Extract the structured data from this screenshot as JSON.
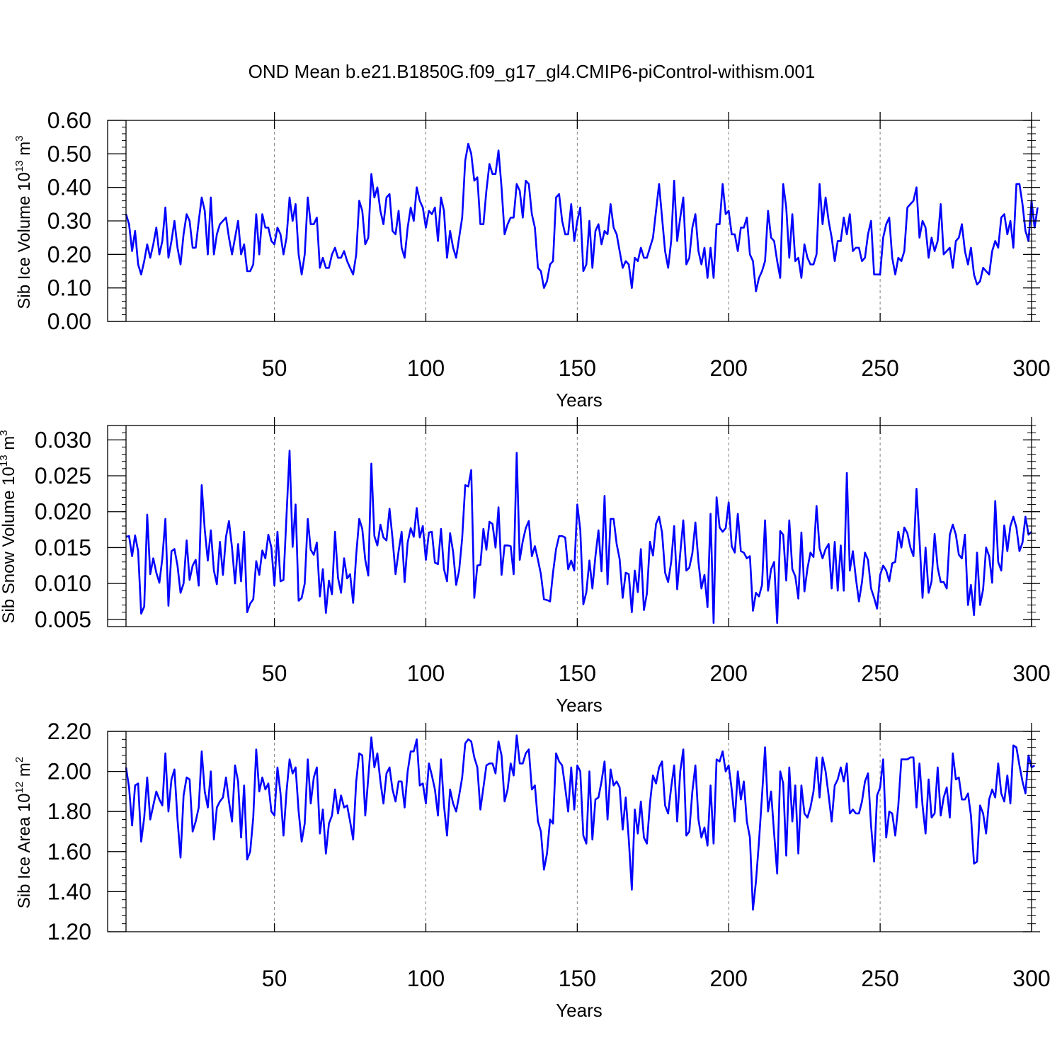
{
  "title": "OND Mean b.e21.B1850G.f09_g17_gl4.CMIP6-piControl-withism.001",
  "line_color": "#0000ff",
  "chart_data": [
    {
      "type": "line",
      "ylabel": "Sib Ice Volume 10",
      "ylabel_sup": "13",
      "ylabel_unit": "m",
      "ylabel_unit_sup": "3",
      "xlabel": "Years",
      "xlim": [
        1,
        300
      ],
      "ylim": [
        0,
        0.6
      ],
      "xticks": [
        50,
        100,
        150,
        200,
        250,
        300
      ],
      "xtick_labels": [
        "50",
        "100",
        "150",
        "200",
        "250",
        "300"
      ],
      "yticks": [
        0,
        0.1,
        0.2,
        0.3,
        0.4,
        0.5,
        0.6
      ],
      "ytick_labels": [
        "0.00",
        "0.10",
        "0.20",
        "0.30",
        "0.40",
        "0.50",
        "0.60"
      ],
      "x_start": 1,
      "values": [
        0.32,
        0.29,
        0.21,
        0.27,
        0.17,
        0.14,
        0.18,
        0.23,
        0.19,
        0.23,
        0.28,
        0.2,
        0.24,
        0.34,
        0.19,
        0.24,
        0.3,
        0.22,
        0.17,
        0.26,
        0.32,
        0.3,
        0.22,
        0.22,
        0.3,
        0.37,
        0.33,
        0.2,
        0.37,
        0.2,
        0.26,
        0.29,
        0.3,
        0.31,
        0.25,
        0.2,
        0.25,
        0.3,
        0.2,
        0.23,
        0.15,
        0.15,
        0.17,
        0.32,
        0.2,
        0.32,
        0.28,
        0.28,
        0.24,
        0.23,
        0.28,
        0.26,
        0.2,
        0.25,
        0.37,
        0.3,
        0.35,
        0.2,
        0.14,
        0.2,
        0.37,
        0.29,
        0.29,
        0.31,
        0.16,
        0.19,
        0.16,
        0.16,
        0.2,
        0.22,
        0.19,
        0.19,
        0.21,
        0.18,
        0.16,
        0.14,
        0.2,
        0.36,
        0.33,
        0.23,
        0.25,
        0.44,
        0.37,
        0.4,
        0.33,
        0.29,
        0.37,
        0.38,
        0.27,
        0.26,
        0.33,
        0.22,
        0.19,
        0.28,
        0.34,
        0.3,
        0.4,
        0.36,
        0.34,
        0.28,
        0.33,
        0.32,
        0.34,
        0.24,
        0.37,
        0.33,
        0.19,
        0.27,
        0.22,
        0.19,
        0.25,
        0.31,
        0.48,
        0.53,
        0.5,
        0.42,
        0.43,
        0.29,
        0.29,
        0.39,
        0.47,
        0.44,
        0.44,
        0.51,
        0.4,
        0.26,
        0.29,
        0.31,
        0.31,
        0.41,
        0.39,
        0.31,
        0.42,
        0.41,
        0.32,
        0.28,
        0.16,
        0.15,
        0.1,
        0.12,
        0.17,
        0.18,
        0.37,
        0.38,
        0.3,
        0.26,
        0.26,
        0.35,
        0.24,
        0.3,
        0.34,
        0.15,
        0.17,
        0.3,
        0.16,
        0.27,
        0.29,
        0.23,
        0.27,
        0.26,
        0.35,
        0.28,
        0.26,
        0.21,
        0.16,
        0.18,
        0.17,
        0.1,
        0.19,
        0.18,
        0.22,
        0.19,
        0.19,
        0.22,
        0.25,
        0.33,
        0.41,
        0.31,
        0.21,
        0.16,
        0.24,
        0.42,
        0.24,
        0.31,
        0.37,
        0.17,
        0.19,
        0.28,
        0.32,
        0.21,
        0.17,
        0.22,
        0.13,
        0.22,
        0.13,
        0.29,
        0.29,
        0.41,
        0.32,
        0.33,
        0.26,
        0.26,
        0.21,
        0.28,
        0.28,
        0.31,
        0.2,
        0.18,
        0.09,
        0.13,
        0.15,
        0.18,
        0.33,
        0.25,
        0.24,
        0.18,
        0.13,
        0.41,
        0.34,
        0.19,
        0.32,
        0.18,
        0.19,
        0.13,
        0.23,
        0.19,
        0.17,
        0.17,
        0.2,
        0.41,
        0.29,
        0.37,
        0.3,
        0.25,
        0.18,
        0.24,
        0.24,
        0.31,
        0.26,
        0.32,
        0.21,
        0.22,
        0.22,
        0.18,
        0.19,
        0.26,
        0.3,
        0.14,
        0.14,
        0.14,
        0.25,
        0.29,
        0.31,
        0.19,
        0.14,
        0.19,
        0.18,
        0.21,
        0.34,
        0.35,
        0.36,
        0.4,
        0.25,
        0.3,
        0.28,
        0.19,
        0.25,
        0.21,
        0.24,
        0.35,
        0.2,
        0.21,
        0.22,
        0.16,
        0.24,
        0.25,
        0.29,
        0.21,
        0.17,
        0.22,
        0.14,
        0.11,
        0.12,
        0.16,
        0.15,
        0.14,
        0.21,
        0.24,
        0.22,
        0.31,
        0.32,
        0.26,
        0.3,
        0.22,
        0.41,
        0.41,
        0.35,
        0.27,
        0.24,
        0.36,
        0.28,
        0.34
      ]
    },
    {
      "type": "line",
      "ylabel": "Sib Snow Volume 10",
      "ylabel_sup": "13",
      "ylabel_unit": "m",
      "ylabel_unit_sup": "3",
      "xlabel": "Years",
      "xlim": [
        1,
        300
      ],
      "ylim": [
        0.004,
        0.032
      ],
      "xticks": [
        50,
        100,
        150,
        200,
        250,
        300
      ],
      "xtick_labels": [
        "50",
        "100",
        "150",
        "200",
        "250",
        "300"
      ],
      "yticks": [
        0.005,
        0.01,
        0.015,
        0.02,
        0.025,
        0.03
      ],
      "ytick_labels": [
        "0.005",
        "0.010",
        "0.015",
        "0.020",
        "0.025",
        "0.030"
      ],
      "x_start": 1,
      "values": [
        0.0165,
        0.0166,
        0.0138,
        0.0167,
        0.0145,
        0.0058,
        0.0068,
        0.0196,
        0.0113,
        0.0135,
        0.0115,
        0.0101,
        0.0135,
        0.019,
        0.0069,
        0.0145,
        0.0148,
        0.0125,
        0.0087,
        0.01,
        0.016,
        0.0105,
        0.0125,
        0.0133,
        0.0097,
        0.0237,
        0.0175,
        0.0132,
        0.0174,
        0.0118,
        0.0099,
        0.0158,
        0.0112,
        0.0165,
        0.0187,
        0.015,
        0.01,
        0.0155,
        0.0103,
        0.0172,
        0.006,
        0.0072,
        0.0078,
        0.0131,
        0.0112,
        0.0146,
        0.0135,
        0.0168,
        0.015,
        0.0097,
        0.0172,
        0.0103,
        0.0105,
        0.0195,
        0.0285,
        0.0151,
        0.021,
        0.0076,
        0.008,
        0.01,
        0.019,
        0.0147,
        0.014,
        0.0157,
        0.0082,
        0.012,
        0.0059,
        0.0104,
        0.0085,
        0.0172,
        0.0108,
        0.0087,
        0.0135,
        0.0107,
        0.0113,
        0.0073,
        0.014,
        0.019,
        0.0176,
        0.0133,
        0.0111,
        0.0267,
        0.0166,
        0.0153,
        0.0182,
        0.0164,
        0.016,
        0.0204,
        0.0163,
        0.0113,
        0.0145,
        0.0172,
        0.0102,
        0.0157,
        0.0177,
        0.0165,
        0.0205,
        0.0164,
        0.018,
        0.0133,
        0.0171,
        0.0172,
        0.0129,
        0.0127,
        0.0176,
        0.012,
        0.0103,
        0.017,
        0.0144,
        0.0098,
        0.0118,
        0.0163,
        0.0237,
        0.0235,
        0.0258,
        0.008,
        0.0125,
        0.0126,
        0.0176,
        0.0147,
        0.0186,
        0.0183,
        0.015,
        0.0206,
        0.0112,
        0.0153,
        0.0153,
        0.0152,
        0.0113,
        0.0282,
        0.0133,
        0.0159,
        0.0177,
        0.0187,
        0.0138,
        0.0152,
        0.0133,
        0.0113,
        0.0078,
        0.0077,
        0.0075,
        0.0115,
        0.0148,
        0.0166,
        0.0166,
        0.0164,
        0.012,
        0.0132,
        0.0118,
        0.021,
        0.0175,
        0.0071,
        0.0088,
        0.0132,
        0.0093,
        0.0138,
        0.0174,
        0.0117,
        0.0222,
        0.0099,
        0.019,
        0.019,
        0.0155,
        0.0134,
        0.008,
        0.0115,
        0.0113,
        0.006,
        0.0118,
        0.0088,
        0.0148,
        0.0063,
        0.0086,
        0.0158,
        0.0139,
        0.0183,
        0.0193,
        0.0171,
        0.0115,
        0.0102,
        0.013,
        0.018,
        0.0092,
        0.0142,
        0.0188,
        0.0118,
        0.0122,
        0.0142,
        0.0185,
        0.013,
        0.0093,
        0.0112,
        0.0067,
        0.0197,
        0.0045,
        0.022,
        0.0178,
        0.0172,
        0.0177,
        0.0213,
        0.0152,
        0.0143,
        0.0197,
        0.0145,
        0.0143,
        0.0135,
        0.0138,
        0.0062,
        0.0087,
        0.0082,
        0.0098,
        0.0188,
        0.009,
        0.012,
        0.013,
        0.0045,
        0.0173,
        0.0168,
        0.0104,
        0.0188,
        0.012,
        0.011,
        0.0079,
        0.0171,
        0.0089,
        0.0121,
        0.0143,
        0.0137,
        0.0208,
        0.0149,
        0.0135,
        0.0148,
        0.0155,
        0.0093,
        0.0158,
        0.009,
        0.0153,
        0.009,
        0.0254,
        0.0118,
        0.0145,
        0.0107,
        0.0075,
        0.0102,
        0.0143,
        0.0133,
        0.0093,
        0.008,
        0.0065,
        0.0112,
        0.0125,
        0.0118,
        0.0103,
        0.0128,
        0.013,
        0.0172,
        0.015,
        0.0178,
        0.017,
        0.015,
        0.0138,
        0.0232,
        0.0162,
        0.008,
        0.015,
        0.0087,
        0.0103,
        0.0169,
        0.0122,
        0.0102,
        0.0102,
        0.0093,
        0.0168,
        0.0182,
        0.0168,
        0.014,
        0.0135,
        0.0168,
        0.007,
        0.0098,
        0.0056,
        0.0143,
        0.007,
        0.0092,
        0.015,
        0.0138,
        0.0101,
        0.0215,
        0.013,
        0.0118,
        0.0181,
        0.0145,
        0.018,
        0.0193,
        0.0178,
        0.0145,
        0.0157,
        0.0193,
        0.0168,
        0.0172
      ]
    },
    {
      "type": "line",
      "ylabel": "Sib Ice Area 10",
      "ylabel_sup": "12",
      "ylabel_unit": "m",
      "ylabel_unit_sup": "2",
      "xlabel": "Years",
      "xlim": [
        1,
        300
      ],
      "ylim": [
        1.2,
        2.2
      ],
      "xticks": [
        50,
        100,
        150,
        200,
        250,
        300
      ],
      "xtick_labels": [
        "50",
        "100",
        "150",
        "200",
        "250",
        "300"
      ],
      "yticks": [
        1.2,
        1.4,
        1.6,
        1.8,
        2.0,
        2.2
      ],
      "ytick_labels": [
        "1.20",
        "1.40",
        "1.60",
        "1.80",
        "2.00",
        "2.20"
      ],
      "x_start": 1,
      "values": [
        2.02,
        1.92,
        1.73,
        1.93,
        1.94,
        1.65,
        1.77,
        1.97,
        1.76,
        1.83,
        1.9,
        1.86,
        1.83,
        2.09,
        1.8,
        1.96,
        2.01,
        1.76,
        1.57,
        1.88,
        1.97,
        1.96,
        1.7,
        1.75,
        1.82,
        2.1,
        1.9,
        1.82,
        2.0,
        1.66,
        1.82,
        1.85,
        1.87,
        1.97,
        1.85,
        1.75,
        2.03,
        1.95,
        1.67,
        1.93,
        1.56,
        1.6,
        1.77,
        2.11,
        1.9,
        1.97,
        1.91,
        1.94,
        1.8,
        1.78,
        2.02,
        1.89,
        1.68,
        1.9,
        2.06,
        1.99,
        2.02,
        1.8,
        1.65,
        1.74,
        2.06,
        1.84,
        1.97,
        2.02,
        1.69,
        1.81,
        1.59,
        1.74,
        1.78,
        1.91,
        1.79,
        1.88,
        1.82,
        1.83,
        1.75,
        1.66,
        1.95,
        2.09,
        2.08,
        1.78,
        1.97,
        2.17,
        2.02,
        2.09,
        1.95,
        1.84,
        1.99,
        2.02,
        1.91,
        1.85,
        1.95,
        1.95,
        1.82,
        2.0,
        2.1,
        2.1,
        2.16,
        1.93,
        1.94,
        1.84,
        2.04,
        1.98,
        1.91,
        1.78,
        2.06,
        1.83,
        1.68,
        1.91,
        1.84,
        1.8,
        1.88,
        1.97,
        2.14,
        2.16,
        2.15,
        2.07,
        2.02,
        1.81,
        1.92,
        2.03,
        2.04,
        2.04,
        1.99,
        2.15,
        2.08,
        1.85,
        1.91,
        2.04,
        1.98,
        2.18,
        2.04,
        2.04,
        2.09,
        2.11,
        1.91,
        1.93,
        1.75,
        1.7,
        1.51,
        1.59,
        1.76,
        1.74,
        2.09,
        2.05,
        2.03,
        1.92,
        1.8,
        2.02,
        1.81,
        2.03,
        2.0,
        1.68,
        1.64,
        2.0,
        1.66,
        1.86,
        1.87,
        1.95,
        2.05,
        1.76,
        2.01,
        1.93,
        1.95,
        1.92,
        1.71,
        1.87,
        1.66,
        1.41,
        1.81,
        1.69,
        1.85,
        1.67,
        1.64,
        1.84,
        1.98,
        1.94,
        2.02,
        2.05,
        1.83,
        1.79,
        1.92,
        2.03,
        1.75,
        2.0,
        2.11,
        1.68,
        1.7,
        1.9,
        2.03,
        1.76,
        1.67,
        1.72,
        1.63,
        1.93,
        1.64,
        2.06,
        2.05,
        2.1,
        2.0,
        2.03,
        1.91,
        1.75,
        2.0,
        1.86,
        1.95,
        1.75,
        1.67,
        1.31,
        1.45,
        1.65,
        1.88,
        2.12,
        1.8,
        1.9,
        1.69,
        1.49,
        2.0,
        1.94,
        1.58,
        2.02,
        1.75,
        1.93,
        1.59,
        1.93,
        1.79,
        1.77,
        1.82,
        1.9,
        2.07,
        1.87,
        2.07,
        2.0,
        1.88,
        1.75,
        1.93,
        1.96,
        2.02,
        1.95,
        2.04,
        1.79,
        1.81,
        1.79,
        1.79,
        1.85,
        1.95,
        1.99,
        1.73,
        1.55,
        1.88,
        1.92,
        2.06,
        1.67,
        1.8,
        1.79,
        1.68,
        1.83,
        2.06,
        2.06,
        2.06,
        2.07,
        2.07,
        1.82,
        2.04,
        1.83,
        1.69,
        1.96,
        1.77,
        1.79,
        2.02,
        1.78,
        1.87,
        1.92,
        1.77,
        2.09,
        1.96,
        1.97,
        1.86,
        1.86,
        1.89,
        1.78,
        1.54,
        1.55,
        1.83,
        1.79,
        1.69,
        1.86,
        1.91,
        1.87,
        2.04,
        1.89,
        1.85,
        1.98,
        1.84,
        2.13,
        2.12,
        2.03,
        1.95,
        1.89,
        2.08,
        2.02,
        2.03
      ]
    }
  ]
}
